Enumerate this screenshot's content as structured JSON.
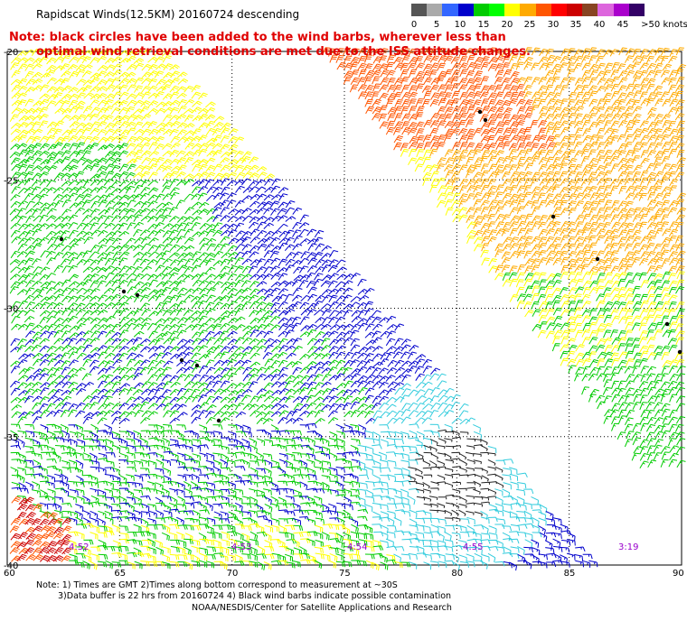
{
  "title": "Rapidscat Winds(12.5KM) 20160724 descending",
  "note": {
    "line1": "Note: black circles have been added to the wind barbs, wherever less than",
    "line2": "optimal wind retrieval conditions are met due to the ISS attitude changes."
  },
  "colorbar": {
    "colors": [
      "#555555",
      "#aaaaaa",
      "#3366ff",
      "#0000cc",
      "#00cc00",
      "#00ff00",
      "#ffff00",
      "#ffaa00",
      "#ff5500",
      "#ff0000",
      "#cc0000",
      "#884422",
      "#dd66dd",
      "#aa00cc",
      "#330066"
    ],
    "labels": [
      "0",
      "5",
      "10",
      "15",
      "20",
      "25",
      "30",
      "35",
      "40",
      "45",
      ">50 knots"
    ]
  },
  "axes": {
    "x_ticks": [
      "60",
      "65",
      "70",
      "75",
      "80",
      "85",
      "90"
    ],
    "y_ticks": [
      "-20",
      "-25",
      "-30",
      "-35",
      "-40"
    ]
  },
  "pass_times": [
    "4:52",
    "4:53",
    "4:54",
    "4:55",
    "3:19"
  ],
  "footnote": {
    "line1": "Note: 1) Times are GMT 2)Times along bottom correspond to measurement at ~30S",
    "line2": "3)Data buffer is 22 hrs from 20160724 4) Black wind barbs indicate possible contamination"
  },
  "credit": "NOAA/NESDIS/Center for Satellite Applications and Research"
}
